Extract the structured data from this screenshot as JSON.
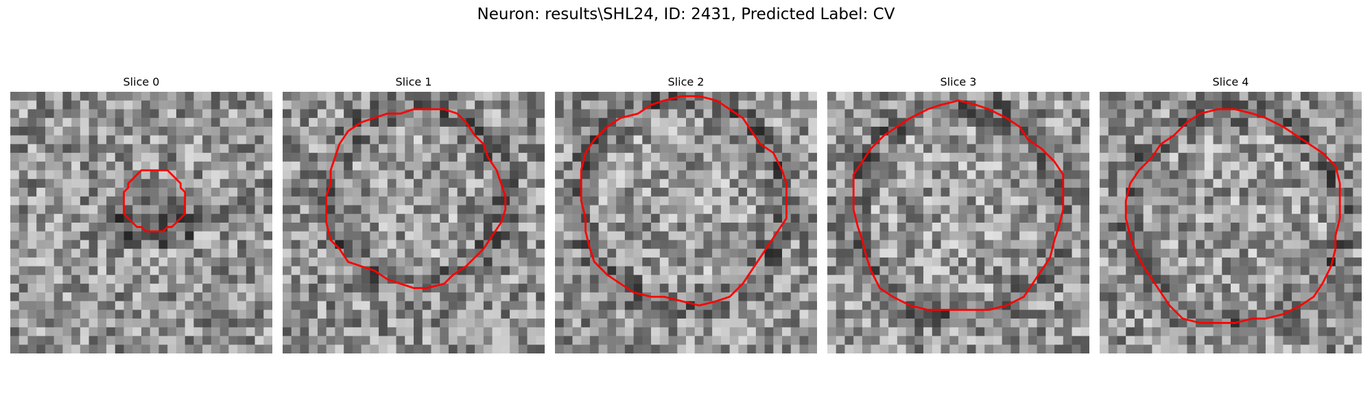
{
  "figure": {
    "title": "Neuron: results\\SHL24, ID: 2431, Predicted Label: CV",
    "contour_color": "#ff0000"
  },
  "panels": [
    {
      "title": "Slice 0",
      "seed": 11,
      "image_description": "grayscale noise patch",
      "contour": {
        "cx": 16.5,
        "cy": 12.5,
        "r": 3.6
      }
    },
    {
      "title": "Slice 1",
      "seed": 23,
      "image_description": "grayscale noise patch",
      "contour": {
        "cx": 15.0,
        "cy": 12.0,
        "r": 10.2
      }
    },
    {
      "title": "Slice 2",
      "seed": 37,
      "image_description": "grayscale noise patch",
      "contour": {
        "cx": 14.5,
        "cy": 12.5,
        "r": 11.8
      }
    },
    {
      "title": "Slice 3",
      "seed": 41,
      "image_description": "grayscale noise patch",
      "contour": {
        "cx": 15.0,
        "cy": 13.5,
        "r": 12.0
      }
    },
    {
      "title": "Slice 4",
      "seed": 53,
      "image_description": "grayscale noise patch",
      "contour": {
        "cx": 15.5,
        "cy": 14.5,
        "r": 12.2
      }
    }
  ]
}
